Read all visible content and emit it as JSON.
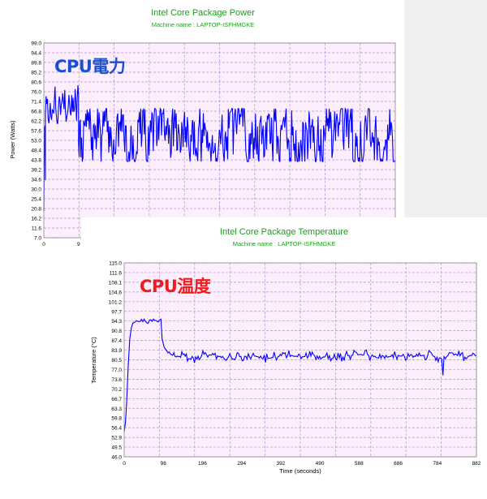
{
  "chart_data": [
    {
      "type": "line",
      "title": "Intel Core Package Power",
      "subtitle": "Machine name : LAPTOP-ISFHMGKE",
      "overlay_label": "CPU電力",
      "xlabel": "",
      "ylabel": "Power (Watts)",
      "ylim": [
        7.0,
        99.0
      ],
      "y_ticks": [
        "99.0",
        "94.4",
        "89.8",
        "85.2",
        "80.6",
        "76.0",
        "71.4",
        "66.8",
        "62.2",
        "57.6",
        "53.0",
        "48.4",
        "43.8",
        "39.2",
        "34.6",
        "30.0",
        "25.4",
        "20.8",
        "16.2",
        "11.6",
        "7.0"
      ],
      "x_ticks": [
        "0",
        "9"
      ],
      "x_tick_values": [
        0,
        9
      ],
      "xlim": [
        0,
        91
      ],
      "grid": true,
      "colors": {
        "line": "#0000ff",
        "plot_bg": "#fdeefe",
        "grid": "#b58fd3",
        "title": "#1aa01a"
      },
      "series": [
        {
          "x_end": 91,
          "segments": [
            {
              "x0": 0,
              "x1": 0.4,
              "min": 7.0,
              "max": 60,
              "seed": 11,
              "jitter": 0.5
            },
            {
              "x0": 0.4,
              "x1": 9.0,
              "min": 61,
              "max": 79,
              "seed": 3,
              "jitter": 0.5
            },
            {
              "x0": 9.0,
              "x1": 9.6,
              "min": 45,
              "max": 81.5,
              "seed": 5,
              "jitter": 0.6
            },
            {
              "x0": 9.6,
              "x1": 91,
              "min": 43,
              "max": 68,
              "seed": 7,
              "jitter": 0.55
            }
          ]
        }
      ]
    },
    {
      "type": "line",
      "title": "Intel Core Package Temperature",
      "subtitle": "Machine name : LAPTOP-ISFHMGKE",
      "overlay_label": "CPU温度",
      "xlabel": "Time (seconds)",
      "ylabel": "Temperature (°C)",
      "ylim": [
        46.0,
        115.0
      ],
      "y_ticks": [
        "115.0",
        "111.6",
        "108.1",
        "104.6",
        "101.2",
        "97.7",
        "94.3",
        "90.8",
        "87.4",
        "83.9",
        "80.5",
        "77.0",
        "73.6",
        "70.2",
        "66.7",
        "63.3",
        "59.8",
        "56.4",
        "52.9",
        "49.5",
        "46.0"
      ],
      "x_ticks": [
        "0",
        "98",
        "196",
        "294",
        "392",
        "490",
        "588",
        "686",
        "784",
        "882"
      ],
      "x_tick_values": [
        0,
        98,
        196,
        294,
        392,
        490,
        588,
        686,
        784,
        882
      ],
      "xlim": [
        0,
        882
      ],
      "grid": true,
      "colors": {
        "line": "#0000ff",
        "plot_bg": "#fdeefe",
        "grid": "#b58fd3",
        "title": "#1aa01a"
      },
      "series": [
        {
          "points": [
            [
              0,
              55
            ],
            [
              3,
              58
            ],
            [
              6,
              65
            ],
            [
              10,
              78
            ],
            [
              14,
              88
            ],
            [
              18,
              92
            ],
            [
              22,
              94
            ],
            [
              30,
              94.5
            ],
            [
              40,
              94.3
            ],
            [
              50,
              94.6
            ],
            [
              60,
              94
            ],
            [
              70,
              94.5
            ],
            [
              80,
              94.3
            ],
            [
              88,
              94.8
            ],
            [
              92,
              95
            ],
            [
              95,
              88
            ],
            [
              100,
              85
            ],
            [
              110,
              83
            ],
            [
              130,
              81.5
            ],
            [
              150,
              82
            ],
            [
              170,
              80.5
            ],
            [
              200,
              82.5
            ],
            [
              240,
              81.8
            ],
            [
              280,
              81.5
            ],
            [
              320,
              82
            ],
            [
              360,
              81
            ],
            [
              400,
              82.2
            ],
            [
              440,
              81.5
            ],
            [
              480,
              82
            ],
            [
              520,
              81
            ],
            [
              560,
              82
            ],
            [
              600,
              82.5
            ],
            [
              640,
              81
            ],
            [
              680,
              82
            ],
            [
              720,
              81.5
            ],
            [
              760,
              82.3
            ],
            [
              795,
              81
            ],
            [
              798,
              75
            ],
            [
              801,
              81
            ],
            [
              820,
              83
            ],
            [
              850,
              81.5
            ],
            [
              870,
              82
            ],
            [
              882,
              82
            ]
          ],
          "noise": {
            "amplitude": 1.8,
            "step": 3,
            "seed": 21,
            "from_x": 100
          }
        }
      ]
    }
  ]
}
